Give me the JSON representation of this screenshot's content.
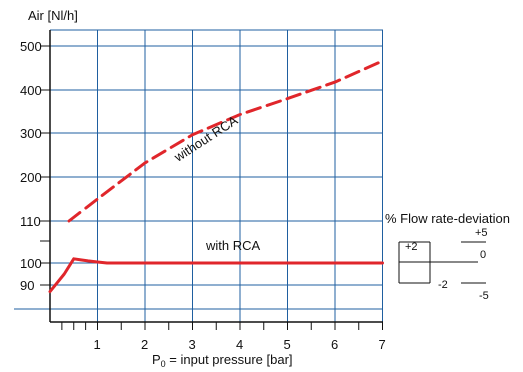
{
  "chart_data": {
    "type": "line",
    "ylabel": "Air [Nl/h]",
    "xlabel_main": "P",
    "xlabel_sub": "0",
    "xlabel_rest": " = input pressure [bar]",
    "x_ticks": [
      "1",
      "2",
      "3",
      "4",
      "5",
      "6",
      "7"
    ],
    "y_ticks": [
      "500",
      "400",
      "300",
      "200",
      "110",
      "100",
      "90"
    ],
    "xlim": [
      0,
      7
    ],
    "grid": true,
    "series": [
      {
        "name": "without RCA",
        "style": "dashed",
        "color": "#e0262b",
        "x": [
          0.4,
          1,
          2,
          3,
          4,
          5,
          6,
          7
        ],
        "y": [
          110,
          155,
          232,
          296,
          343,
          380,
          418,
          466
        ]
      },
      {
        "name": "with RCA",
        "style": "solid",
        "color": "#e0262b",
        "x": [
          0,
          0.3,
          0.5,
          0.8,
          1.2,
          2,
          3,
          4,
          5,
          6,
          7
        ],
        "y": [
          87,
          95,
          101,
          100.5,
          100,
          100,
          100,
          100,
          100,
          100,
          100
        ]
      }
    ],
    "legend": {
      "title": "% Flow rate-deviation",
      "values": [
        "+5",
        "+2",
        "0",
        "-2",
        "-5"
      ]
    }
  },
  "colors": {
    "grid": "#1f5fa0",
    "curve": "#e0262b",
    "axis": "#111111"
  }
}
